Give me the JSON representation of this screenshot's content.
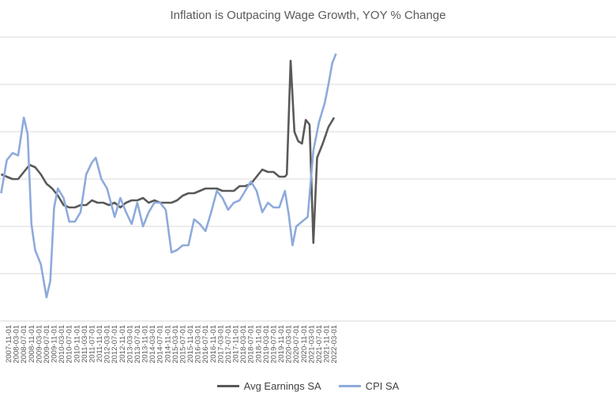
{
  "chart_data": {
    "type": "line",
    "title": "Inflation is Outpacing Wage Growth, YOY % Change",
    "xlabel": "",
    "ylabel": "",
    "ylim": [
      -3,
      9
    ],
    "grid": true,
    "legend_position": "bottom",
    "x_ticks": [
      "2007-11-01",
      "2008-03-01",
      "2008-07-01",
      "2008-11-01",
      "2009-03-01",
      "2009-07-01",
      "2009-11-01",
      "2010-03-01",
      "2010-07-01",
      "2010-11-01",
      "2011-03-01",
      "2011-07-01",
      "2011-11-01",
      "2012-03-01",
      "2012-07-01",
      "2012-11-01",
      "2013-03-01",
      "2013-07-01",
      "2013-11-01",
      "2014-03-01",
      "2014-07-01",
      "2014-11-01",
      "2015-03-01",
      "2015-07-01",
      "2015-11-01",
      "2016-03-01",
      "2016-07-01",
      "2016-11-01",
      "2017-03-01",
      "2017-07-01",
      "2017-11-01",
      "2018-03-01",
      "2018-07-01",
      "2018-11-01",
      "2019-03-01",
      "2019-07-01",
      "2019-11-01",
      "2020-03-01",
      "2020-07-01",
      "2020-11-01",
      "2021-03-01",
      "2021-07-01",
      "2021-11-01",
      "2022-03-01"
    ],
    "series": [
      {
        "name": "Avg Earnings SA",
        "color": "#595959",
        "points": [
          [
            "2007-07",
            3.2
          ],
          [
            "2007-10",
            3.1
          ],
          [
            "2008-01",
            3.0
          ],
          [
            "2008-04",
            3.0
          ],
          [
            "2008-07",
            3.3
          ],
          [
            "2008-10",
            3.6
          ],
          [
            "2009-01",
            3.5
          ],
          [
            "2009-04",
            3.2
          ],
          [
            "2009-07",
            2.8
          ],
          [
            "2009-10",
            2.6
          ],
          [
            "2010-01",
            2.3
          ],
          [
            "2010-04",
            1.9
          ],
          [
            "2010-07",
            1.8
          ],
          [
            "2010-10",
            1.8
          ],
          [
            "2011-01",
            1.9
          ],
          [
            "2011-04",
            1.9
          ],
          [
            "2011-07",
            2.1
          ],
          [
            "2011-10",
            2.0
          ],
          [
            "2012-01",
            2.0
          ],
          [
            "2012-04",
            1.9
          ],
          [
            "2012-07",
            2.0
          ],
          [
            "2012-10",
            1.8
          ],
          [
            "2013-01",
            2.0
          ],
          [
            "2013-04",
            2.1
          ],
          [
            "2013-07",
            2.1
          ],
          [
            "2013-10",
            2.2
          ],
          [
            "2014-01",
            2.0
          ],
          [
            "2014-04",
            2.1
          ],
          [
            "2014-07",
            2.0
          ],
          [
            "2014-10",
            2.0
          ],
          [
            "2015-01",
            2.0
          ],
          [
            "2015-04",
            2.1
          ],
          [
            "2015-07",
            2.3
          ],
          [
            "2015-10",
            2.4
          ],
          [
            "2016-01",
            2.4
          ],
          [
            "2016-04",
            2.5
          ],
          [
            "2016-07",
            2.6
          ],
          [
            "2016-10",
            2.6
          ],
          [
            "2017-01",
            2.6
          ],
          [
            "2017-04",
            2.5
          ],
          [
            "2017-07",
            2.5
          ],
          [
            "2017-10",
            2.5
          ],
          [
            "2018-01",
            2.7
          ],
          [
            "2018-04",
            2.7
          ],
          [
            "2018-07",
            2.8
          ],
          [
            "2018-10",
            3.1
          ],
          [
            "2019-01",
            3.4
          ],
          [
            "2019-04",
            3.3
          ],
          [
            "2019-07",
            3.3
          ],
          [
            "2019-10",
            3.1
          ],
          [
            "2020-01",
            3.1
          ],
          [
            "2020-02",
            3.2
          ],
          [
            "2020-04",
            8.0
          ],
          [
            "2020-06",
            5.0
          ],
          [
            "2020-08",
            4.6
          ],
          [
            "2020-10",
            4.5
          ],
          [
            "2020-12",
            5.5
          ],
          [
            "2021-02",
            5.3
          ],
          [
            "2021-04",
            0.3
          ],
          [
            "2021-06",
            3.9
          ],
          [
            "2021-09",
            4.5
          ],
          [
            "2021-12",
            5.2
          ],
          [
            "2022-03",
            5.6
          ]
        ]
      },
      {
        "name": "CPI SA",
        "color": "#8eaadb",
        "points": [
          [
            "2007-07",
            2.4
          ],
          [
            "2007-10",
            3.8
          ],
          [
            "2008-01",
            4.1
          ],
          [
            "2008-04",
            4.0
          ],
          [
            "2008-07",
            5.6
          ],
          [
            "2008-09",
            4.9
          ],
          [
            "2008-11",
            1.1
          ],
          [
            "2009-01",
            0.0
          ],
          [
            "2009-04",
            -0.6
          ],
          [
            "2009-07",
            -2.0
          ],
          [
            "2009-09",
            -1.3
          ],
          [
            "2009-11",
            1.8
          ],
          [
            "2010-01",
            2.6
          ],
          [
            "2010-04",
            2.2
          ],
          [
            "2010-07",
            1.2
          ],
          [
            "2010-10",
            1.2
          ],
          [
            "2011-01",
            1.6
          ],
          [
            "2011-04",
            3.2
          ],
          [
            "2011-07",
            3.7
          ],
          [
            "2011-09",
            3.9
          ],
          [
            "2011-12",
            3.0
          ],
          [
            "2012-03",
            2.6
          ],
          [
            "2012-07",
            1.4
          ],
          [
            "2012-10",
            2.2
          ],
          [
            "2013-01",
            1.6
          ],
          [
            "2013-04",
            1.1
          ],
          [
            "2013-07",
            2.0
          ],
          [
            "2013-10",
            1.0
          ],
          [
            "2014-01",
            1.6
          ],
          [
            "2014-04",
            2.0
          ],
          [
            "2014-07",
            2.0
          ],
          [
            "2014-10",
            1.7
          ],
          [
            "2015-01",
            -0.1
          ],
          [
            "2015-04",
            0.0
          ],
          [
            "2015-07",
            0.2
          ],
          [
            "2015-10",
            0.2
          ],
          [
            "2016-01",
            1.3
          ],
          [
            "2016-04",
            1.1
          ],
          [
            "2016-07",
            0.8
          ],
          [
            "2016-10",
            1.6
          ],
          [
            "2017-01",
            2.5
          ],
          [
            "2017-04",
            2.2
          ],
          [
            "2017-07",
            1.7
          ],
          [
            "2017-10",
            2.0
          ],
          [
            "2018-01",
            2.1
          ],
          [
            "2018-04",
            2.5
          ],
          [
            "2018-07",
            2.9
          ],
          [
            "2018-10",
            2.5
          ],
          [
            "2019-01",
            1.6
          ],
          [
            "2019-04",
            2.0
          ],
          [
            "2019-07",
            1.8
          ],
          [
            "2019-10",
            1.8
          ],
          [
            "2020-01",
            2.5
          ],
          [
            "2020-03",
            1.5
          ],
          [
            "2020-05",
            0.2
          ],
          [
            "2020-07",
            1.0
          ],
          [
            "2020-10",
            1.2
          ],
          [
            "2021-01",
            1.4
          ],
          [
            "2021-04",
            4.2
          ],
          [
            "2021-07",
            5.4
          ],
          [
            "2021-10",
            6.2
          ],
          [
            "2021-12",
            7.0
          ],
          [
            "2022-02",
            7.9
          ],
          [
            "2022-04",
            8.3
          ]
        ]
      }
    ]
  }
}
